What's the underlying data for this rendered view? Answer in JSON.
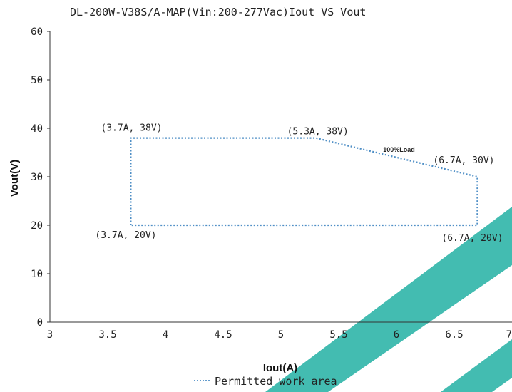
{
  "chart_data": {
    "type": "line",
    "title": "DL-200W-V38S/A-MAP(Vin:200-277Vac)Iout VS Vout",
    "xlabel": "Iout(A)",
    "ylabel": "Vout(V)",
    "xlim": [
      3,
      7
    ],
    "ylim": [
      0,
      60
    ],
    "x_ticks": [
      3,
      3.5,
      4,
      4.5,
      5,
      5.5,
      6,
      6.5,
      7
    ],
    "x_tick_labels": [
      "3",
      "3.5",
      "4",
      "4.5",
      "5",
      "5.5",
      "6",
      "6.5",
      "7"
    ],
    "y_ticks": [
      0,
      10,
      20,
      30,
      40,
      50,
      60
    ],
    "y_tick_labels": [
      "0",
      "10",
      "20",
      "30",
      "40",
      "50",
      "60"
    ],
    "grid": false,
    "legend": {
      "placement": "bottom",
      "entries": [
        "Permitted work area"
      ]
    },
    "series": [
      {
        "name": "Permitted work area",
        "color": "#4f8fc6",
        "style": "dotted",
        "points": [
          {
            "x": 3.7,
            "y": 20,
            "label": "(3.7A, 20V)"
          },
          {
            "x": 3.7,
            "y": 38,
            "label": "(3.7A, 38V)"
          },
          {
            "x": 5.3,
            "y": 38,
            "label": "(5.3A, 38V)"
          },
          {
            "x": 6.7,
            "y": 30,
            "label": "(6.7A, 30V)"
          },
          {
            "x": 6.7,
            "y": 20,
            "label": "(6.7A, 20V)"
          },
          {
            "x": 3.7,
            "y": 20
          }
        ]
      }
    ],
    "annotations": [
      {
        "text": "100%Load",
        "x": 6.1,
        "y": 35
      }
    ],
    "watermark_color": "#2fb5a8"
  }
}
